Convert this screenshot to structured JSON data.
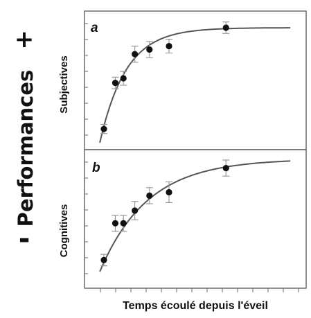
{
  "labels": {
    "plus": "+",
    "performances": "Performances",
    "minus": "-"
  },
  "chart_data": [
    {
      "type": "scatter",
      "panel": "a",
      "ylabel": "Subjectives",
      "xlabel": "Temps écoulé depuis l'éveil",
      "points": [
        {
          "x": 1.0,
          "y": 0.12,
          "err": 0.04
        },
        {
          "x": 1.7,
          "y": 0.52,
          "err": 0.05
        },
        {
          "x": 2.2,
          "y": 0.56,
          "err": 0.06
        },
        {
          "x": 2.9,
          "y": 0.77,
          "err": 0.07
        },
        {
          "x": 3.8,
          "y": 0.81,
          "err": 0.07
        },
        {
          "x": 5.0,
          "y": 0.84,
          "err": 0.06
        },
        {
          "x": 8.5,
          "y": 1.0,
          "err": 0.05
        }
      ],
      "fit": {
        "type": "exponential-saturation",
        "ymax": 1.0,
        "ymin": 0.0,
        "rate": 0.62
      }
    },
    {
      "type": "scatter",
      "panel": "b",
      "ylabel": "Cognitives",
      "xlabel": "Temps écoulé depuis l'éveil",
      "points": [
        {
          "x": 1.0,
          "y": 0.1,
          "err": 0.05
        },
        {
          "x": 1.7,
          "y": 0.42,
          "err": 0.07
        },
        {
          "x": 2.2,
          "y": 0.42,
          "err": 0.07
        },
        {
          "x": 2.9,
          "y": 0.53,
          "err": 0.08
        },
        {
          "x": 3.8,
          "y": 0.66,
          "err": 0.07
        },
        {
          "x": 5.0,
          "y": 0.69,
          "err": 0.09
        },
        {
          "x": 8.5,
          "y": 0.9,
          "err": 0.07
        }
      ],
      "fit": {
        "type": "exponential-saturation",
        "ymax": 0.98,
        "ymin": 0.0,
        "rate": 0.34
      }
    }
  ]
}
